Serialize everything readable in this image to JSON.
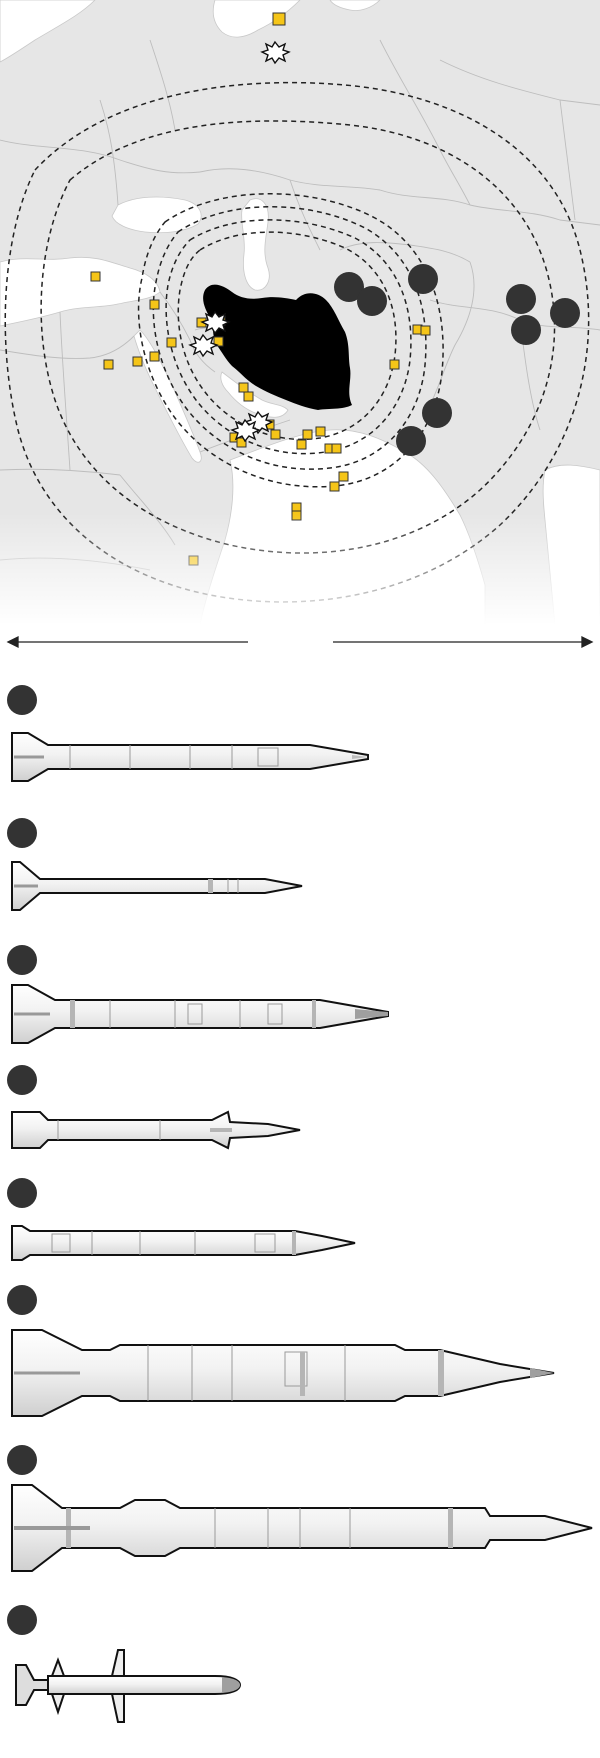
{
  "map": {
    "colors": {
      "land": "#e4e4e4",
      "land_light": "#eeeeee",
      "sea": "#ffffff",
      "border": "#b9b9b9",
      "focus_country": "#000000",
      "base_marker": "#f5c518",
      "base_marker_stroke": "#333333",
      "range_ring": "#222222",
      "site_marker": "#333333"
    },
    "markers": {
      "base_count": 41,
      "strike_count": 5,
      "site_count": 10
    }
  },
  "scale_bar": {
    "arrow_color": "#222222",
    "left_label": "",
    "right_label": ""
  },
  "missiles": [
    {
      "id": "m1",
      "label": "",
      "badge_color": "#333333"
    },
    {
      "id": "m2",
      "label": "",
      "badge_color": "#333333"
    },
    {
      "id": "m3",
      "label": "",
      "badge_color": "#333333"
    },
    {
      "id": "m4",
      "label": "",
      "badge_color": "#333333"
    },
    {
      "id": "m5",
      "label": "",
      "badge_color": "#333333"
    },
    {
      "id": "m6",
      "label": "",
      "badge_color": "#333333"
    },
    {
      "id": "m7",
      "label": "",
      "badge_color": "#333333"
    },
    {
      "id": "m8",
      "label": "",
      "badge_color": "#333333"
    }
  ]
}
